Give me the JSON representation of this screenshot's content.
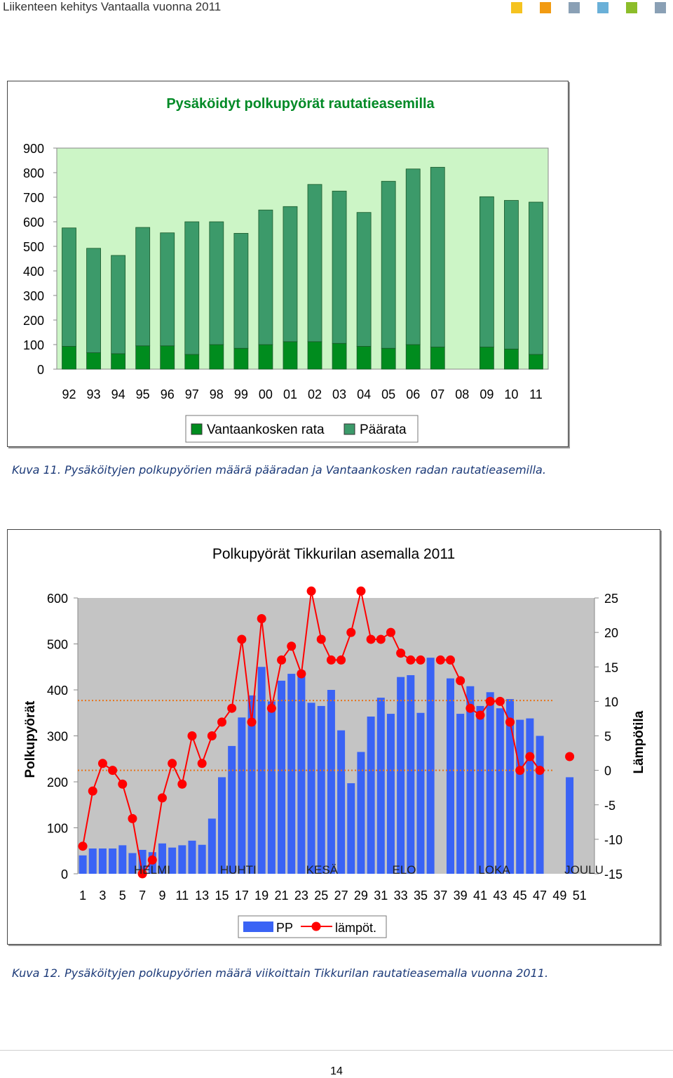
{
  "header": {
    "title": "Liikenteen kehitys Vantaalla vuonna 2011",
    "squares": [
      "#f5c320",
      "#f29b12",
      "#8aa0b5",
      "#6ab0d8",
      "#8cbd2a",
      "#8aa0b5"
    ]
  },
  "captions": {
    "fig11": "Kuva 11. Pysäköityjen polkupyörien määrä pääradan ja Vantaankosken radan rautatieasemilla.",
    "fig12": "Kuva 12. Pysäköityjen polkupyörien määrä viikoittain Tikkurilan rautatieasemalla vuonna 2011."
  },
  "page_number": "14",
  "chart_data": [
    {
      "type": "bar",
      "stacked": true,
      "title": "Pysäköidyt polkupyörät rautatieasemilla",
      "categories": [
        "92",
        "93",
        "94",
        "95",
        "96",
        "97",
        "98",
        "99",
        "00",
        "01",
        "02",
        "03",
        "04",
        "05",
        "06",
        "07",
        "08",
        "09",
        "10",
        "11"
      ],
      "series": [
        {
          "name": "Vantaankosken rata",
          "color": "#008c1e",
          "values": [
            93,
            67,
            63,
            95,
            95,
            60,
            100,
            85,
            100,
            112,
            112,
            105,
            93,
            85,
            100,
            90,
            null,
            90,
            82,
            60
          ]
        },
        {
          "name": "Päärata",
          "color": "#3c9a6a",
          "values": [
            482,
            425,
            400,
            482,
            460,
            540,
            500,
            468,
            548,
            550,
            640,
            620,
            545,
            680,
            715,
            732,
            null,
            612,
            605,
            620
          ]
        }
      ],
      "ylim": [
        0,
        900
      ],
      "yticks": [
        "0",
        "100",
        "200",
        "300",
        "400",
        "500",
        "600",
        "700",
        "800",
        "900"
      ],
      "plot_background": "#ccf5c6",
      "grid": false,
      "legend": "bottom"
    },
    {
      "type": "bar+line",
      "title": "Polkupyörät Tikkurilan asemalla 2011",
      "ylabel": "Polkupyörät",
      "y2label": "Lämpötila",
      "x": [
        1,
        2,
        3,
        4,
        5,
        6,
        7,
        8,
        9,
        10,
        11,
        12,
        13,
        14,
        15,
        16,
        17,
        18,
        19,
        20,
        21,
        22,
        23,
        24,
        25,
        26,
        27,
        28,
        29,
        30,
        31,
        32,
        33,
        34,
        35,
        36,
        37,
        38,
        39,
        40,
        41,
        42,
        43,
        44,
        45,
        46,
        47,
        48,
        49,
        50,
        51,
        52
      ],
      "xticks": [
        "1",
        "3",
        "5",
        "7",
        "9",
        "11",
        "13",
        "15",
        "17",
        "19",
        "21",
        "23",
        "25",
        "27",
        "29",
        "31",
        "33",
        "35",
        "37",
        "39",
        "41",
        "43",
        "45",
        "47",
        "49",
        "51"
      ],
      "month_labels": [
        "HELMI",
        "HUHTI",
        "KESÄ",
        "ELO",
        "LOKA",
        "JOULU"
      ],
      "series": [
        {
          "name": "PP",
          "color": "#3a63f5",
          "axis": "left",
          "values": [
            40,
            55,
            55,
            55,
            62,
            45,
            52,
            47,
            66,
            57,
            62,
            72,
            63,
            120,
            210,
            278,
            340,
            388,
            450,
            375,
            420,
            435,
            442,
            372,
            365,
            400,
            312,
            197,
            265,
            342,
            383,
            348,
            428,
            432,
            350,
            470,
            null,
            425,
            348,
            408,
            365,
            395,
            360,
            380,
            335,
            338,
            300,
            null,
            null,
            210,
            null,
            null
          ]
        },
        {
          "name": "lämpöt.",
          "color": "#ff0000",
          "axis": "right",
          "values": [
            -11,
            -3,
            1,
            0,
            -2,
            -7,
            -15,
            -13,
            -4,
            1,
            -2,
            5,
            1,
            5,
            7,
            9,
            19,
            7,
            22,
            9,
            16,
            18,
            14,
            26,
            19,
            16,
            16,
            20,
            26,
            19,
            19,
            20,
            17,
            16,
            16,
            null,
            16,
            16,
            13,
            9,
            8,
            10,
            10,
            7,
            0,
            2,
            0,
            null,
            null,
            2,
            null,
            null
          ]
        }
      ],
      "ylim": [
        0,
        600
      ],
      "y2lim": [
        -15,
        25
      ],
      "yticks": [
        "0",
        "100",
        "200",
        "300",
        "400",
        "500",
        "600"
      ],
      "y2ticks": [
        "-15",
        "-10",
        "-5",
        "0",
        "5",
        "10",
        "15",
        "20",
        "25"
      ],
      "reference_lines": [
        {
          "axis": "left",
          "value": 377,
          "color": "#e8741a"
        },
        {
          "axis": "left",
          "value": 225,
          "color": "#e8741a"
        }
      ],
      "plot_background": "#c4c4c4",
      "legend": "bottom"
    }
  ]
}
